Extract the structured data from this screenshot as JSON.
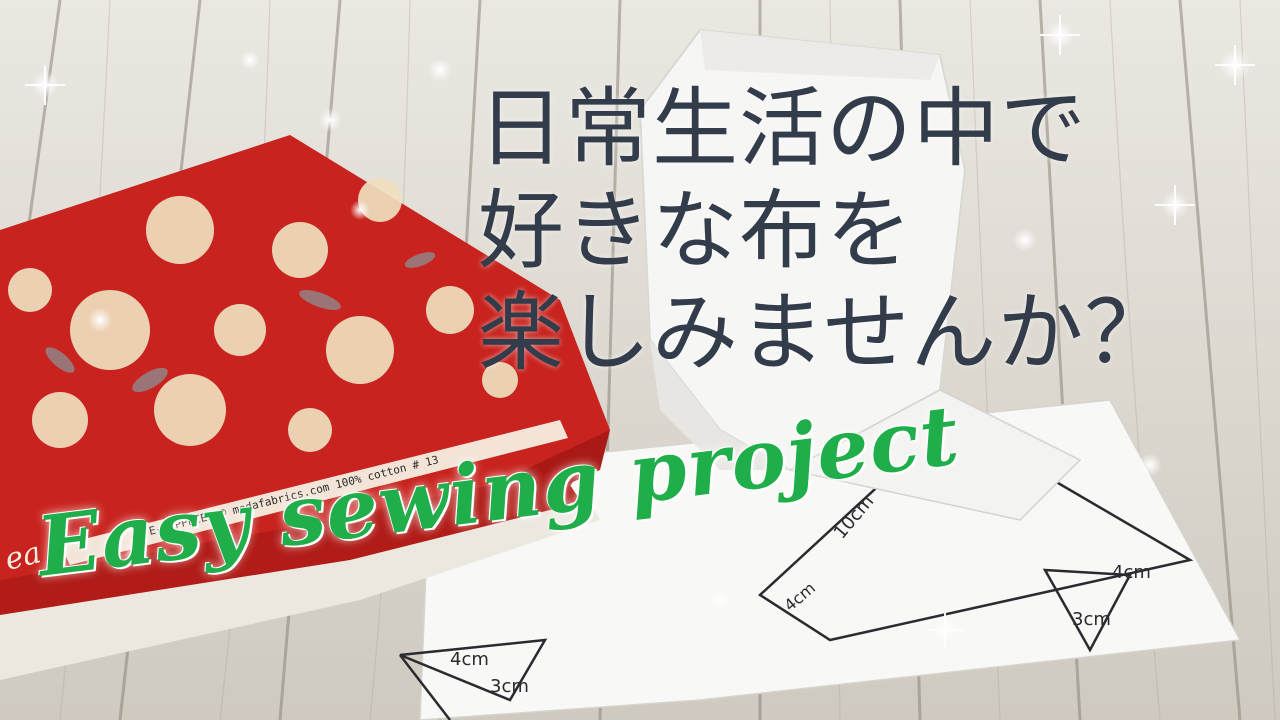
{
  "headline_jp": {
    "line1": "日常生活の中で",
    "line2": "好きな布を",
    "line3": "楽しみませんか？"
  },
  "headline_en": "Easy sewing project",
  "fabric": {
    "selvage_text": "E-SUPPLIES © modafabrics.com 100% cotton # 13",
    "brand_fragment": "ea"
  },
  "pattern_labels": {
    "label_10cm": "10cm",
    "label_4cm_right": "4cm",
    "label_3cm_right": "3cm",
    "label_4cm_left": "4cm",
    "label_3cm_left": "3cm",
    "label_4cm_center": "4cm"
  },
  "colors": {
    "title_jp": "#333c4a",
    "title_en": "#1fae4a",
    "fabric_red": "#c8231e",
    "flower_cream": "#f0dfbf",
    "paper": "#f8f8f6"
  }
}
